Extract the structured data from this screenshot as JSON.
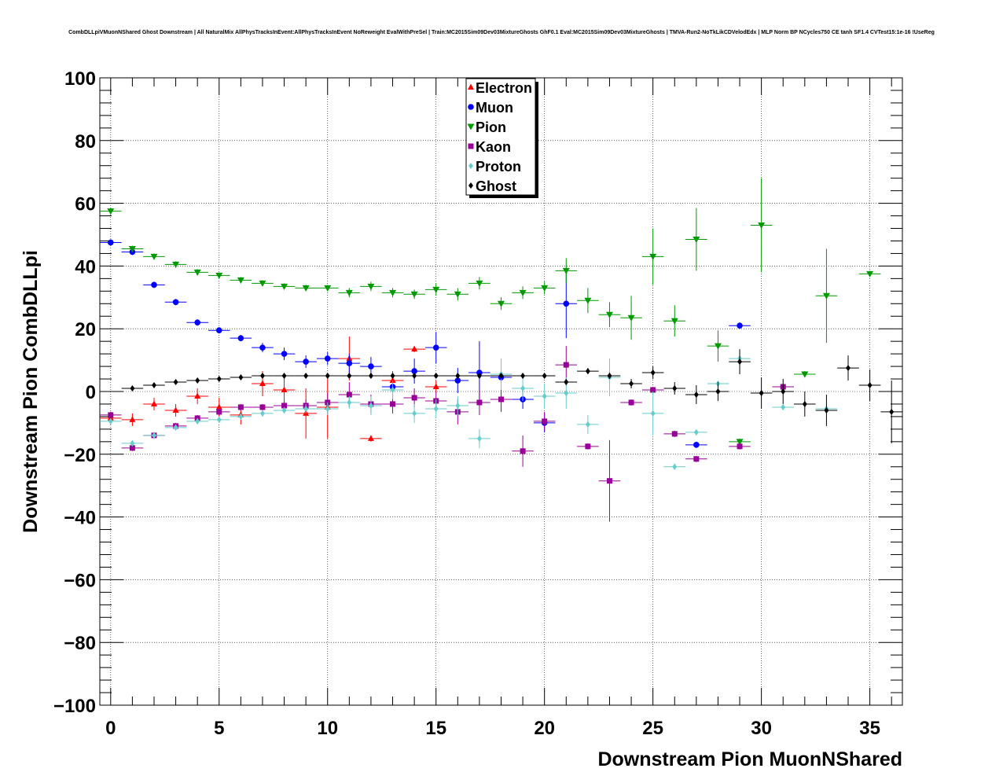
{
  "chart_data": {
    "type": "scatter",
    "title": "CombDLLpiVMuonNShared Ghost Downstream | All NaturalMix AllPhysTracksInEvent:AllPhysTracksInEvent NoReweight EvalWithPreSel | Train:MC2015Sim09Dev03MixtureGhosts GhF0.1 Eval:MC2015Sim09Dev03MixtureGhosts | TMVA-Run2-NoTkLikCDVelodEdx | MLP Norm BP NCycles750 CE tanh SF1.4 CVTest15:1e-16 !UseReg",
    "xlabel": "Downstream Pion MuonNShared",
    "ylabel": "Downstream Pion CombDLLpi",
    "xlim": [
      -0.5,
      36.5
    ],
    "ylim": [
      -100,
      100
    ],
    "x_ticks": [
      "0",
      "5",
      "10",
      "15",
      "20",
      "25",
      "30",
      "35"
    ],
    "y_ticks": [
      "−100",
      "−80",
      "−60",
      "−40",
      "−20",
      "0",
      "20",
      "40",
      "60",
      "80",
      "100"
    ],
    "grid": true,
    "legend_position": "top-center",
    "series": [
      {
        "name": "Electron",
        "color": "#ff0000",
        "marker": "triangle-up",
        "points": [
          [
            0,
            -8.5
          ],
          [
            1,
            -9
          ],
          [
            2,
            -4
          ],
          [
            3,
            -6
          ],
          [
            4,
            -1.5
          ],
          [
            5,
            -5
          ],
          [
            6,
            -7.5
          ],
          [
            7,
            2.5
          ],
          [
            8,
            0.5
          ],
          [
            9,
            -7
          ],
          [
            10,
            -5
          ],
          [
            11,
            10.5
          ],
          [
            12,
            -15
          ],
          [
            13,
            3.5
          ],
          [
            14,
            13.5
          ],
          [
            15,
            1.5
          ]
        ],
        "errors": [
          2,
          2,
          2,
          2,
          2.5,
          3,
          3,
          4,
          5,
          8,
          10,
          7,
          1,
          3,
          1,
          2
        ]
      },
      {
        "name": "Muon",
        "color": "#0000ff",
        "marker": "circle",
        "points": [
          [
            0,
            47.5
          ],
          [
            1,
            44.5
          ],
          [
            2,
            34
          ],
          [
            3,
            28.5
          ],
          [
            4,
            22
          ],
          [
            5,
            19.5
          ],
          [
            6,
            17
          ],
          [
            7,
            14
          ],
          [
            8,
            12
          ],
          [
            9,
            9.5
          ],
          [
            10,
            10.5
          ],
          [
            11,
            9
          ],
          [
            12,
            8
          ],
          [
            13,
            1.5
          ],
          [
            14,
            6.5
          ],
          [
            15,
            14
          ],
          [
            16,
            3.5
          ],
          [
            17,
            6
          ],
          [
            18,
            4.5
          ],
          [
            19,
            -2.5
          ],
          [
            20,
            -10
          ],
          [
            21,
            28
          ],
          [
            27,
            -17
          ],
          [
            29,
            21
          ]
        ],
        "errors": [
          1,
          1,
          1,
          1,
          1,
          1,
          1,
          1.5,
          2,
          2,
          2,
          3,
          3,
          4,
          4,
          5,
          4,
          10,
          3,
          3,
          3,
          11,
          1,
          1
        ]
      },
      {
        "name": "Pion",
        "color": "#009900",
        "marker": "triangle-down",
        "points": [
          [
            0,
            57.5
          ],
          [
            1,
            45.5
          ],
          [
            2,
            43
          ],
          [
            3,
            40.5
          ],
          [
            4,
            38
          ],
          [
            5,
            37
          ],
          [
            6,
            35.5
          ],
          [
            7,
            34.5
          ],
          [
            8,
            33.5
          ],
          [
            9,
            33
          ],
          [
            10,
            33
          ],
          [
            11,
            31.5
          ],
          [
            12,
            33.5
          ],
          [
            13,
            31.5
          ],
          [
            14,
            31
          ],
          [
            15,
            32.5
          ],
          [
            16,
            31
          ],
          [
            17,
            34.5
          ],
          [
            18,
            28
          ],
          [
            19,
            31.5
          ],
          [
            20,
            33
          ],
          [
            21,
            38.5
          ],
          [
            22,
            29
          ],
          [
            23,
            24.5
          ],
          [
            24,
            23.5
          ],
          [
            25,
            43
          ],
          [
            26,
            22.5
          ],
          [
            27,
            48.5
          ],
          [
            28,
            14.5
          ],
          [
            29,
            -16
          ],
          [
            30,
            53
          ],
          [
            32,
            5.5
          ],
          [
            33,
            30.5
          ],
          [
            35,
            37.5
          ]
        ],
        "errors": [
          1,
          1,
          1,
          1,
          1,
          1,
          1,
          1,
          1,
          1,
          1,
          1.5,
          1.5,
          1.5,
          1.5,
          2,
          2,
          2,
          2,
          2,
          2,
          4,
          4,
          4,
          7,
          9,
          5,
          10,
          5,
          1,
          15,
          1,
          15,
          1
        ]
      },
      {
        "name": "Kaon",
        "color": "#990099",
        "marker": "square",
        "points": [
          [
            0,
            -7.5
          ],
          [
            1,
            -18
          ],
          [
            2,
            -14
          ],
          [
            3,
            -11
          ],
          [
            4,
            -8.5
          ],
          [
            5,
            -6.5
          ],
          [
            6,
            -5
          ],
          [
            7,
            -5
          ],
          [
            8,
            -4.5
          ],
          [
            9,
            -4.5
          ],
          [
            10,
            -3.5
          ],
          [
            11,
            -1
          ],
          [
            12,
            -4
          ],
          [
            13,
            -4
          ],
          [
            14,
            -2
          ],
          [
            15,
            -3
          ],
          [
            16,
            -6.5
          ],
          [
            17,
            -3.5
          ],
          [
            18,
            -2.5
          ],
          [
            19,
            -19
          ],
          [
            20,
            -9.5
          ],
          [
            21,
            8.5
          ],
          [
            22,
            -17.5
          ],
          [
            23,
            -28.5
          ],
          [
            24,
            -3.5
          ],
          [
            25,
            0.5
          ],
          [
            26,
            -13.5
          ],
          [
            27,
            -21.5
          ],
          [
            29,
            -17.5
          ],
          [
            31,
            1.5
          ]
        ],
        "errors": [
          1,
          1,
          1,
          1,
          1,
          1,
          1,
          1,
          1.5,
          2,
          3,
          4,
          3,
          3,
          3,
          3,
          4,
          4,
          4,
          5,
          3,
          6,
          1,
          13,
          1,
          1,
          1,
          1,
          1,
          1
        ]
      },
      {
        "name": "Proton",
        "color": "#66cccc",
        "marker": "diamond",
        "points": [
          [
            0,
            -9.5
          ],
          [
            1,
            -16.5
          ],
          [
            2,
            -14
          ],
          [
            3,
            -11.5
          ],
          [
            4,
            -9.5
          ],
          [
            5,
            -9
          ],
          [
            6,
            -8
          ],
          [
            7,
            -7
          ],
          [
            8,
            -6
          ],
          [
            9,
            -5.5
          ],
          [
            10,
            -5.5
          ],
          [
            11,
            -3.5
          ],
          [
            12,
            -4.5
          ],
          [
            13,
            0.5
          ],
          [
            14,
            -7
          ],
          [
            15,
            -5.5
          ],
          [
            16,
            -4.5
          ],
          [
            17,
            -15
          ],
          [
            18,
            5.5
          ],
          [
            19,
            1
          ],
          [
            20,
            -1.5
          ],
          [
            21,
            -0.5
          ],
          [
            22,
            -10.5
          ],
          [
            23,
            4.5
          ],
          [
            25,
            -7
          ],
          [
            26,
            -24
          ],
          [
            27,
            -13
          ],
          [
            28,
            2.5
          ],
          [
            29,
            10.5
          ],
          [
            31,
            -5
          ],
          [
            33,
            -5.5
          ]
        ],
        "errors": [
          1,
          1,
          1,
          1,
          1,
          1,
          1,
          1,
          1,
          1.5,
          2,
          2,
          3,
          3,
          3,
          3,
          3,
          3,
          5,
          4,
          4,
          5,
          3,
          6,
          7,
          1,
          1,
          1,
          2,
          1,
          1
        ]
      },
      {
        "name": "Ghost",
        "color": "#000000",
        "marker": "diamond",
        "points": [
          [
            1,
            1
          ],
          [
            2,
            2
          ],
          [
            3,
            3
          ],
          [
            4,
            3.5
          ],
          [
            5,
            4
          ],
          [
            6,
            4.5
          ],
          [
            7,
            5
          ],
          [
            8,
            5
          ],
          [
            9,
            5
          ],
          [
            10,
            5
          ],
          [
            11,
            5
          ],
          [
            12,
            5
          ],
          [
            13,
            5
          ],
          [
            14,
            5
          ],
          [
            15,
            5
          ],
          [
            16,
            5
          ],
          [
            17,
            5
          ],
          [
            18,
            5
          ],
          [
            19,
            5
          ],
          [
            20,
            5
          ],
          [
            21,
            3
          ],
          [
            22,
            6.5
          ],
          [
            23,
            5
          ],
          [
            24,
            2.5
          ],
          [
            25,
            6
          ],
          [
            26,
            1
          ],
          [
            27,
            -1
          ],
          [
            28,
            0
          ],
          [
            29,
            9.5
          ],
          [
            30,
            -0.5
          ],
          [
            31,
            0
          ],
          [
            32,
            -4
          ],
          [
            33,
            -6
          ],
          [
            34,
            7.5
          ],
          [
            35,
            2
          ],
          [
            36,
            -6.5
          ]
        ],
        "errors": [
          0.5,
          0.5,
          0.5,
          0.5,
          0.5,
          0.5,
          0.5,
          0.5,
          0.5,
          0.5,
          0.5,
          0.5,
          0.5,
          0.5,
          0.5,
          0.5,
          0.5,
          0.5,
          0.5,
          0.5,
          1,
          1,
          1,
          1.5,
          2,
          2,
          3,
          3,
          4,
          5,
          4,
          4,
          5,
          4,
          5,
          10
        ]
      }
    ]
  }
}
